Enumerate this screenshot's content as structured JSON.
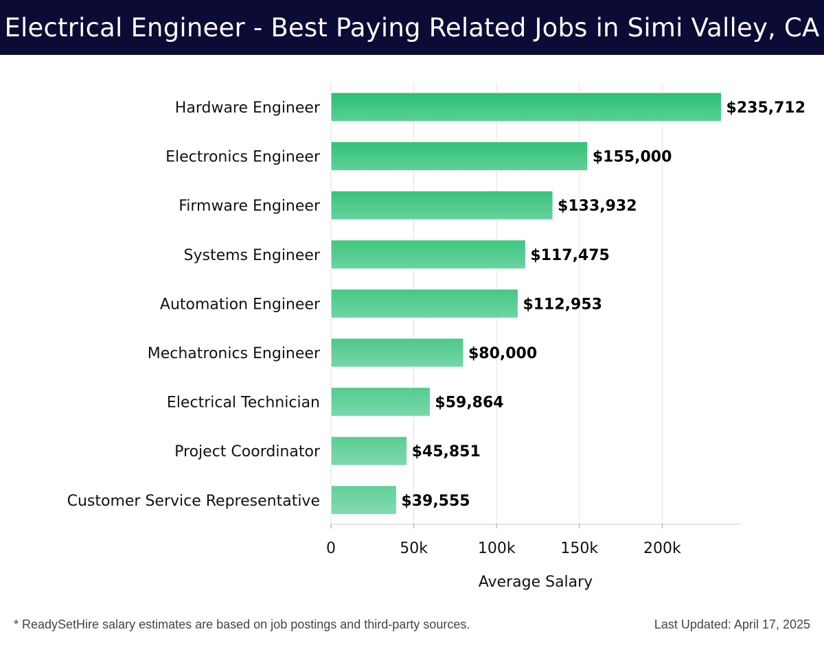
{
  "header": {
    "title": "Electrical Engineer - Best Paying Related Jobs in Simi Valley, CA"
  },
  "chart_data": {
    "type": "bar",
    "orientation": "horizontal",
    "title": "Electrical Engineer - Best Paying Related Jobs in Simi Valley, CA",
    "xlabel": "Average Salary",
    "ylabel": "",
    "xlim": [
      0,
      248000
    ],
    "grid": true,
    "categories": [
      "Hardware Engineer",
      "Electronics Engineer",
      "Firmware Engineer",
      "Systems Engineer",
      "Automation Engineer",
      "Mechatronics Engineer",
      "Electrical Technician",
      "Project Coordinator",
      "Customer Service Representative"
    ],
    "values": [
      235712,
      155000,
      133932,
      117475,
      112953,
      80000,
      59864,
      45851,
      39555
    ],
    "value_labels": [
      "$235,712",
      "$155,000",
      "$133,932",
      "$117,475",
      "$112,953",
      "$80,000",
      "$59,864",
      "$45,851",
      "$39,555"
    ],
    "x_ticks": [
      0,
      50000,
      100000,
      150000,
      200000
    ],
    "x_tick_labels": [
      "0",
      "50k",
      "100k",
      "150k",
      "200k"
    ],
    "colors": {
      "bar_top": "#2bbf73",
      "bar_bottom": "#5ccf97"
    }
  },
  "footer": {
    "note": "* ReadySetHire salary estimates are based on job postings and third-party sources.",
    "updated": "Last Updated: April 17, 2025"
  }
}
